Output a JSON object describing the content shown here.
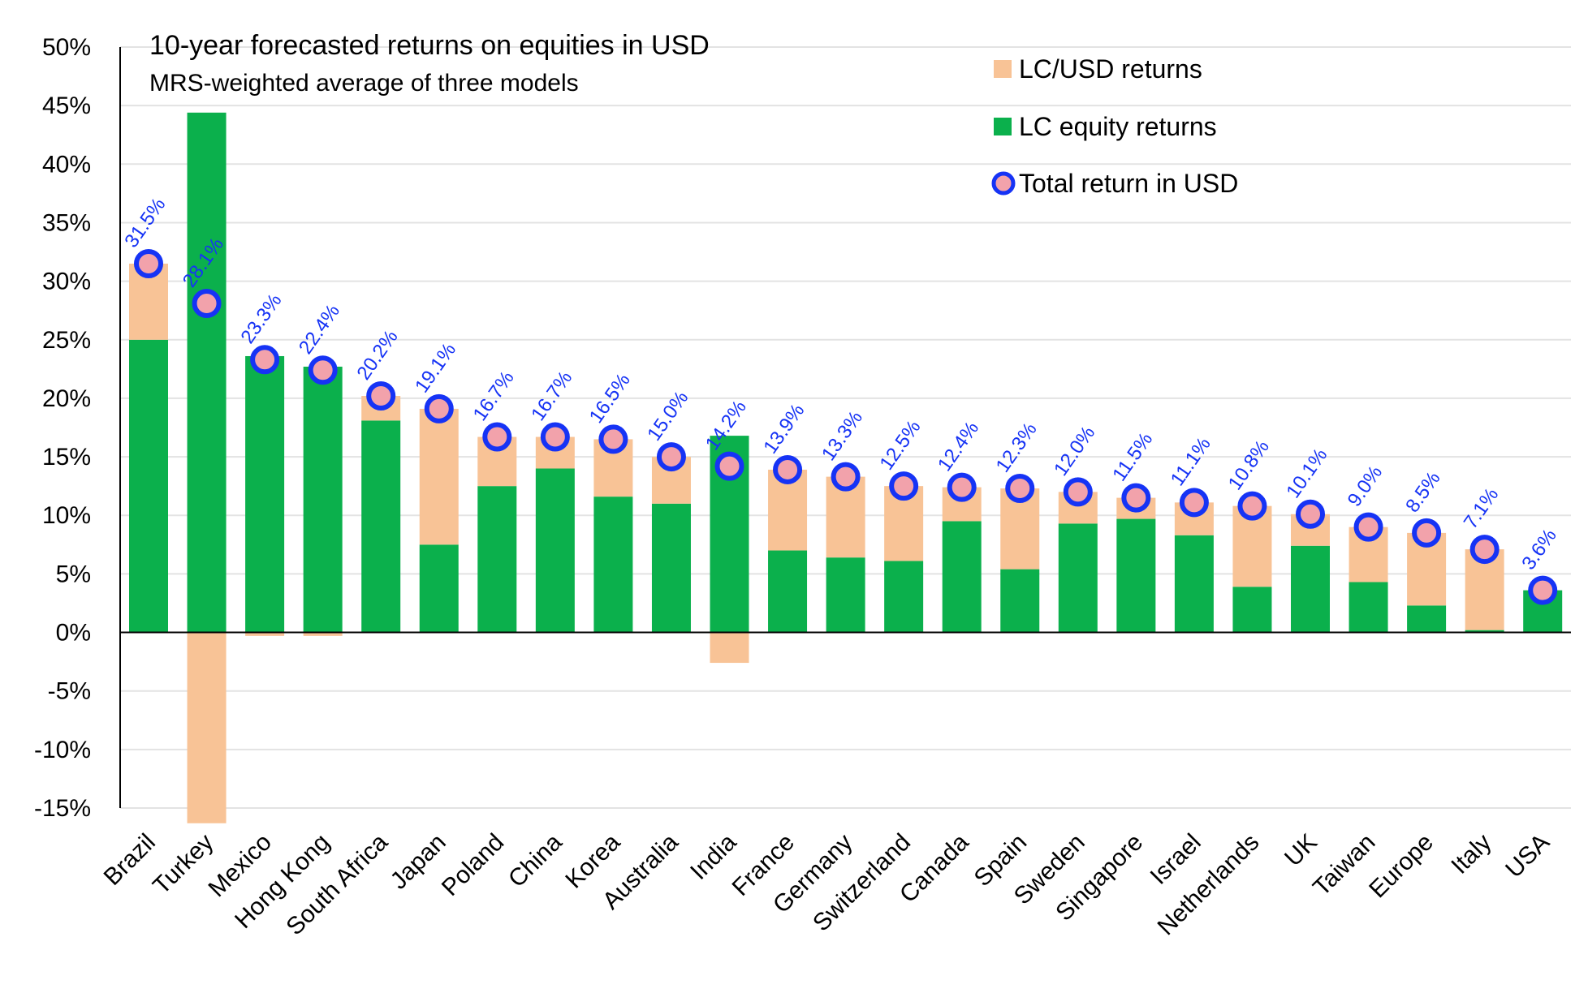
{
  "colors": {
    "lc_usd": "#F8C396",
    "lc_equity": "#0BB04C",
    "total_fill": "#F2A2AB",
    "total_ring": "#1633F5",
    "label_blue": "#1633F5",
    "grid": "#E3E3E3",
    "axis": "#000000"
  },
  "chart_data": {
    "type": "bar",
    "stacked": true,
    "title": "10-year forecasted returns on equities in USD",
    "subtitle": "MRS-weighted average of three models",
    "ylim": [
      -15,
      50
    ],
    "ytick_step": 5,
    "grid": true,
    "legend_position": "top-right",
    "categories": [
      "Brazil",
      "Turkey",
      "Mexico",
      "Hong Kong",
      "South Africa",
      "Japan",
      "Poland",
      "China",
      "Korea",
      "Australia",
      "India",
      "France",
      "Germany",
      "Switzerland",
      "Canada",
      "Spain",
      "Sweden",
      "Singapore",
      "Israel",
      "Netherlands",
      "UK",
      "Taiwan",
      "Europe",
      "Italy",
      "USA"
    ],
    "yticks": [
      "50%",
      "45%",
      "40%",
      "35%",
      "30%",
      "25%",
      "20%",
      "15%",
      "10%",
      "5%",
      "0%",
      "-5%",
      "-10%",
      "-15%"
    ],
    "series": [
      {
        "name": "LC equity returns",
        "type": "bar",
        "values": [
          25.0,
          44.4,
          23.6,
          22.7,
          18.1,
          7.5,
          12.5,
          14.0,
          11.6,
          11.0,
          16.8,
          7.0,
          6.4,
          6.1,
          9.5,
          5.4,
          9.3,
          9.7,
          8.3,
          3.9,
          7.4,
          4.3,
          2.3,
          0.2,
          3.6
        ]
      },
      {
        "name": "LC/USD returns",
        "type": "bar",
        "values": [
          6.5,
          -16.3,
          -0.3,
          -0.3,
          2.1,
          11.6,
          4.2,
          2.7,
          4.9,
          4.0,
          -2.6,
          6.9,
          6.9,
          6.4,
          2.9,
          6.9,
          2.7,
          1.8,
          2.8,
          6.9,
          2.7,
          4.7,
          6.2,
          6.9,
          0.0
        ]
      },
      {
        "name": "Total return in USD",
        "type": "scatter",
        "values": [
          31.5,
          28.1,
          23.3,
          22.4,
          20.2,
          19.1,
          16.7,
          16.7,
          16.5,
          15.0,
          14.2,
          13.9,
          13.3,
          12.5,
          12.4,
          12.3,
          12.0,
          11.5,
          11.1,
          10.8,
          10.1,
          9.0,
          8.5,
          7.1,
          3.6
        ]
      }
    ],
    "data_labels": [
      "31.5%",
      "28.1%",
      "23.3%",
      "22.4%",
      "20.2%",
      "19.1%",
      "16.7%",
      "16.7%",
      "16.5%",
      "15.0%",
      "14.2%",
      "13.9%",
      "13.3%",
      "12.5%",
      "12.4%",
      "12.3%",
      "12.0%",
      "11.5%",
      "11.1%",
      "10.8%",
      "10.1%",
      "9.0%",
      "8.5%",
      "7.1%",
      "3.6%"
    ],
    "legend": [
      "LC/USD returns",
      "LC equity returns",
      "Total return in USD"
    ]
  }
}
